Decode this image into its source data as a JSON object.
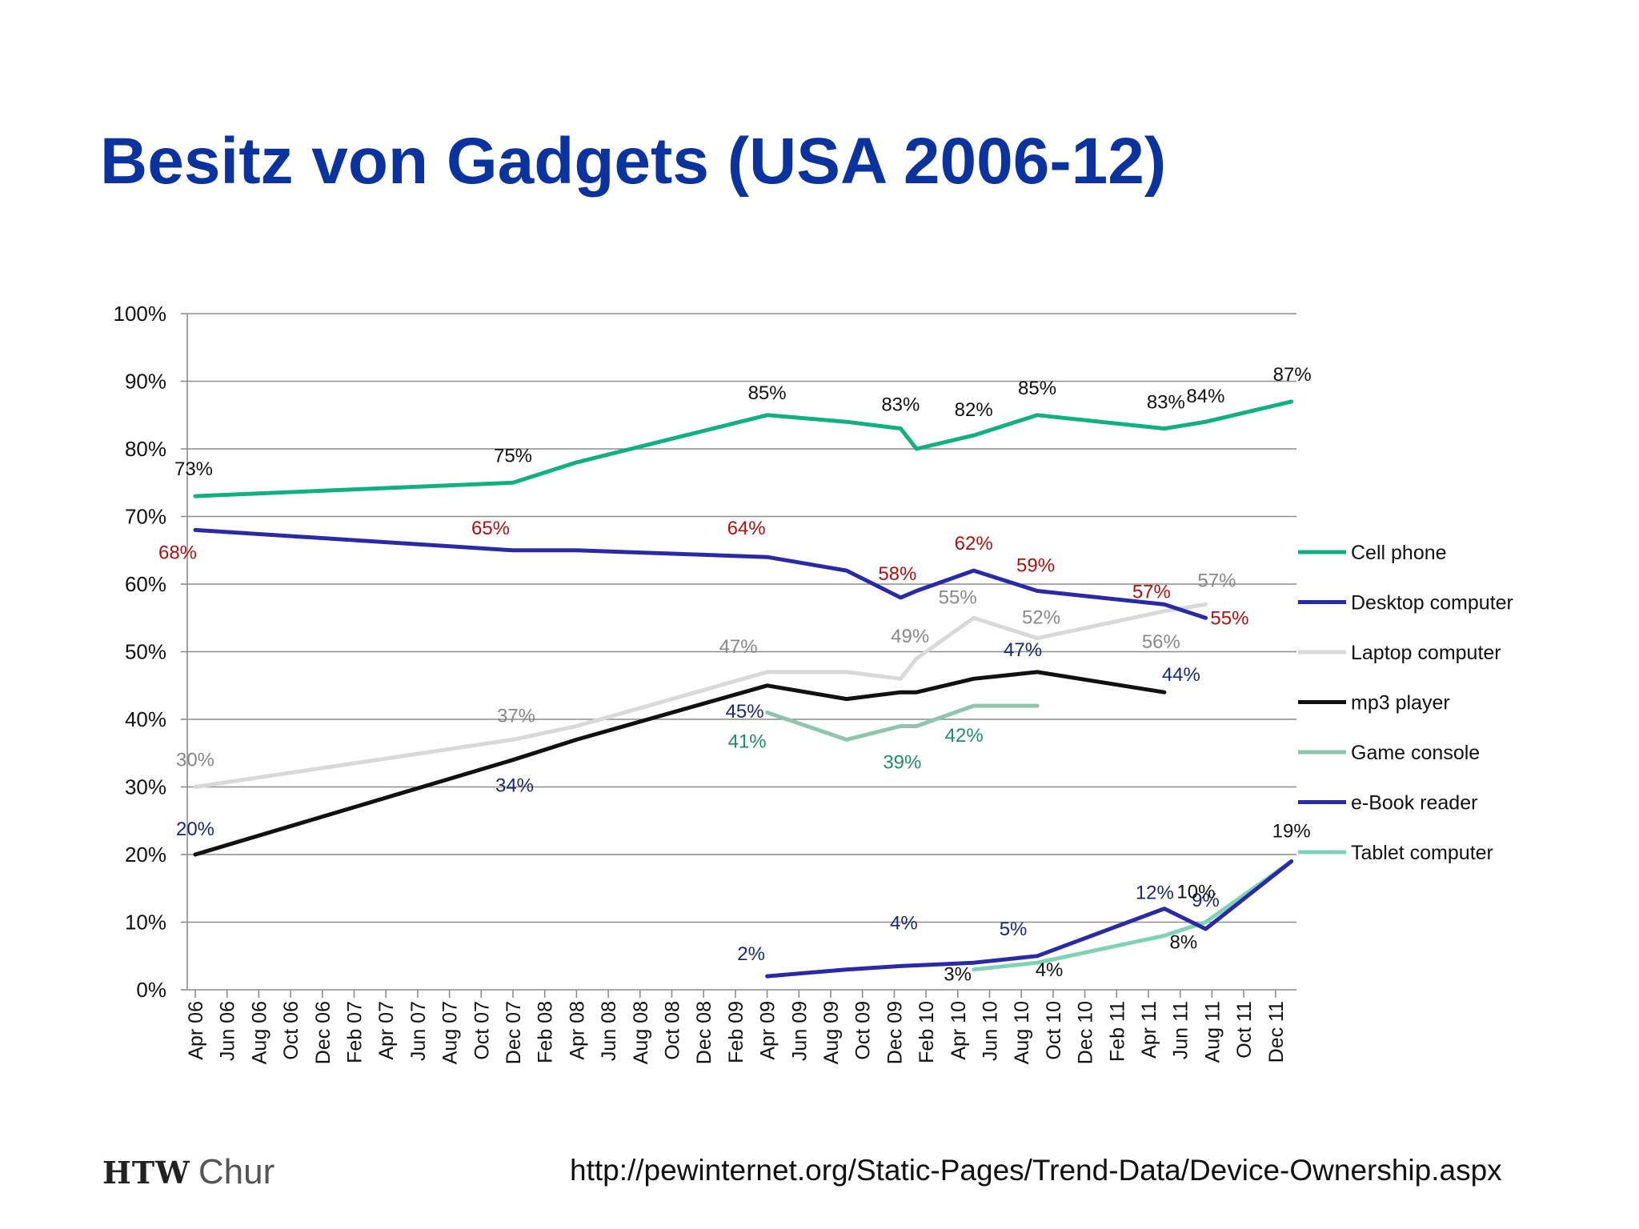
{
  "title": "Besitz von Gadgets (USA 2006-12)",
  "logo": {
    "bold": "HTW",
    "light": "Chur"
  },
  "source_url": "http://pewinternet.org/Static-Pages/Trend-Data/Device-Ownership.aspx",
  "chart_data": {
    "type": "line",
    "categories": [
      "Apr 06",
      "Jun 06",
      "Aug 06",
      "Oct 06",
      "Dec 06",
      "Feb 07",
      "Apr 07",
      "Jun 07",
      "Aug 07",
      "Oct 07",
      "Dec 07",
      "Feb 08",
      "Apr 08",
      "Jun 08",
      "Aug 08",
      "Oct 08",
      "Dec 08",
      "Feb 09",
      "Apr 09",
      "Jun 09",
      "Aug 09",
      "Oct 09",
      "Dec 09",
      "Feb 10",
      "Apr 10",
      "Jun 10",
      "Aug 10",
      "Oct 10",
      "Dec 10",
      "Feb 11",
      "Apr 11",
      "Jun 11",
      "Aug 11",
      "Oct 11",
      "Dec 11"
    ],
    "yticks": [
      "0%",
      "10%",
      "20%",
      "30%",
      "40%",
      "50%",
      "60%",
      "70%",
      "80%",
      "90%",
      "100%"
    ],
    "ylim": [
      0,
      100
    ],
    "grid": true,
    "legend_position": "right",
    "series": [
      {
        "name": "Cell phone",
        "color": "#10b081",
        "label_color": "#111111",
        "x": [
          0,
          10,
          12,
          18,
          20.5,
          22.2,
          22.7,
          24.5,
          26.5,
          30.5,
          31.8,
          34.5
        ],
        "y": [
          73,
          75,
          78,
          85,
          84,
          83,
          80,
          82,
          85,
          83,
          84,
          87
        ],
        "labels": [
          {
            "i": 0,
            "text": "73%"
          },
          {
            "i": 1,
            "text": "75%"
          },
          {
            "i": 3,
            "text": "85%"
          },
          {
            "i": 5,
            "text": "83%"
          },
          {
            "i": 7,
            "text": "82%"
          },
          {
            "i": 8,
            "text": "85%"
          },
          {
            "i": 9,
            "text": "83%"
          },
          {
            "i": 10,
            "text": "84%"
          },
          {
            "i": 11,
            "text": "87%"
          }
        ]
      },
      {
        "name": "Desktop computer",
        "color": "#2b2aa6",
        "label_color": "#b01010",
        "x": [
          0,
          10,
          12,
          18,
          20.5,
          22.2,
          22.7,
          24.5,
          26.5,
          30.5,
          31.8
        ],
        "y": [
          68,
          65,
          65,
          64,
          62,
          58,
          59,
          62,
          59,
          57,
          55
        ],
        "labels": [
          {
            "i": 0,
            "text": "68%"
          },
          {
            "i": 1,
            "text": "65%"
          },
          {
            "i": 3,
            "text": "64%"
          },
          {
            "i": 5,
            "text": "58%"
          },
          {
            "i": 7,
            "text": "62%"
          },
          {
            "i": 8,
            "text": "59%"
          },
          {
            "i": 9,
            "text": "57%"
          },
          {
            "i": 10,
            "text": "55%"
          }
        ]
      },
      {
        "name": "Laptop computer",
        "color": "#d9d9d9",
        "label_color": "#888888",
        "x": [
          0,
          10,
          12,
          18,
          20.5,
          22.2,
          22.7,
          24.5,
          26.5,
          30.5,
          31.8
        ],
        "y": [
          30,
          37,
          39,
          47,
          47,
          46,
          49,
          55,
          52,
          56,
          57
        ],
        "labels": [
          {
            "i": 0,
            "text": "30%"
          },
          {
            "i": 1,
            "text": "37%"
          },
          {
            "i": 3,
            "text": "47%"
          },
          {
            "i": 6,
            "text": "49%"
          },
          {
            "i": 7,
            "text": "55%"
          },
          {
            "i": 8,
            "text": "52%"
          },
          {
            "i": 9,
            "text": "56%"
          },
          {
            "i": 10,
            "text": "57%"
          }
        ]
      },
      {
        "name": "mp3 player",
        "color": "#111111",
        "label_color": "#1a2a6e",
        "x": [
          0,
          10,
          12,
          18,
          20.5,
          22.2,
          22.7,
          24.5,
          26.5,
          30.5
        ],
        "y": [
          20,
          34,
          37,
          45,
          43,
          44,
          44,
          46,
          47,
          44
        ],
        "labels": [
          {
            "i": 0,
            "text": "20%"
          },
          {
            "i": 1,
            "text": "34%"
          },
          {
            "i": 3,
            "text": "45%"
          },
          {
            "i": 8,
            "text": "47%"
          },
          {
            "i": 9,
            "text": "44%"
          }
        ]
      },
      {
        "name": "Game console",
        "color": "#8fc4ad",
        "label_color": "#1f8f5f",
        "x": [
          18,
          20.5,
          22.2,
          22.7,
          24.5,
          26.5
        ],
        "y": [
          41,
          37,
          39,
          39,
          42,
          42
        ],
        "labels": [
          {
            "i": 0,
            "text": "41%"
          },
          {
            "i": 2,
            "text": "39%"
          },
          {
            "i": 4,
            "text": "42%"
          }
        ]
      },
      {
        "name": "e-Book reader",
        "color": "#2b2aa6",
        "label_color": "#1a2a6e",
        "x": [
          18,
          20.5,
          22.2,
          24.5,
          26.5,
          30.5,
          31.8,
          34.5
        ],
        "y": [
          2,
          3,
          3.5,
          4,
          5,
          12,
          9,
          19
        ],
        "labels": [
          {
            "i": 0,
            "text": "2%"
          },
          {
            "i": 2,
            "text": "4%"
          },
          {
            "i": 4,
            "text": "5%"
          },
          {
            "i": 5,
            "text": "12%"
          },
          {
            "i": 6,
            "text": "9%"
          }
        ]
      },
      {
        "name": "Tablet computer",
        "color": "#7fd3b4",
        "label_color": "#111111",
        "x": [
          24.5,
          26.5,
          30.5,
          31.8,
          34.5
        ],
        "y": [
          3,
          4,
          8,
          10,
          19
        ],
        "labels": [
          {
            "i": 0,
            "text": "3%"
          },
          {
            "i": 1,
            "text": "4%"
          },
          {
            "i": 2,
            "text": "8%"
          },
          {
            "i": 3,
            "text": "10%"
          },
          {
            "i": 4,
            "text": "19%"
          }
        ]
      }
    ]
  }
}
